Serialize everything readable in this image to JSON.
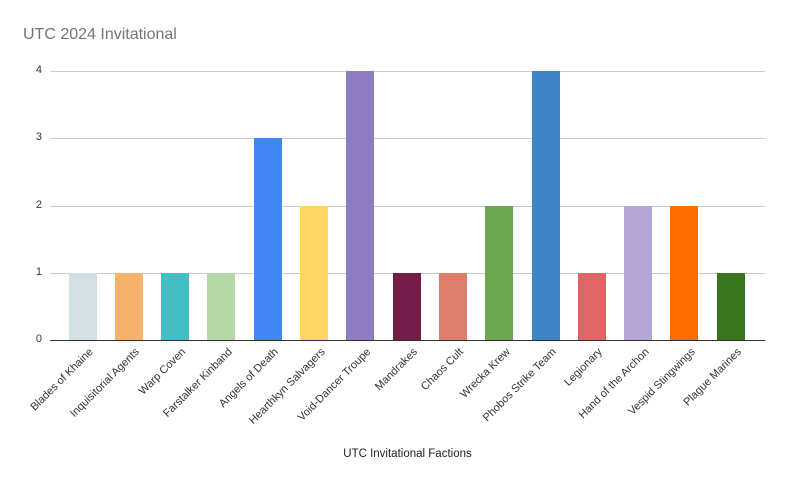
{
  "chart_data": {
    "type": "bar",
    "title": "UTC 2024 Invitational",
    "xlabel": "UTC Invitational Factions",
    "ylabel": "",
    "ylim": [
      0,
      4
    ],
    "yticks": [
      0,
      1,
      2,
      3,
      4
    ],
    "grid": true,
    "legend": false,
    "x_label_rotation_deg": 45,
    "categories": [
      "Blades of Khaine",
      "Inquisitorial Agents",
      "Warp Coven",
      "Farstalker Kinband",
      "Angels of Death",
      "Hearthkyn Salvagers",
      "Void-Dancer Troupe",
      "Mandrakes",
      "Chaos Cult",
      "Wrecka Krew",
      "Phobos Strike Team",
      "Legionary",
      "Hand of the Archon",
      "Vespid Stingwings",
      "Plague Marines"
    ],
    "values": [
      1,
      1,
      1,
      1,
      3,
      2,
      4,
      1,
      1,
      2,
      4,
      1,
      2,
      2,
      1
    ],
    "colors": [
      "#d0e0e3",
      "#f6b26b",
      "#45bdc6",
      "#b6d7a8",
      "#4285f4",
      "#ffd666",
      "#8e7cc3",
      "#741b47",
      "#dd7e6b",
      "#6aa84f",
      "#3d85c6",
      "#e06666",
      "#b4a7d6",
      "#ff6d01",
      "#38761d"
    ]
  },
  "colors": {
    "background": "#ffffff",
    "title_text": "#757575",
    "axis_label_text": "#333333",
    "axis_title_text": "#212121",
    "gridline": "#cccccc",
    "baseline": "#333333"
  }
}
